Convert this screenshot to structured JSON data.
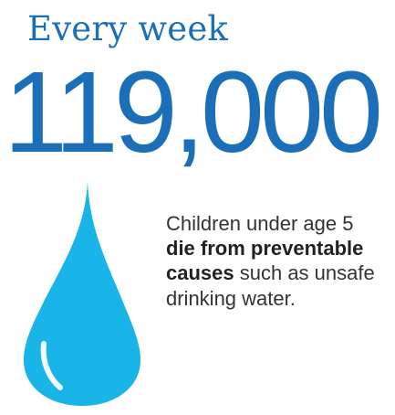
{
  "headline": "Every week",
  "big_number": "119,000",
  "caption": {
    "pre": "Children under age 5 ",
    "emphasis": "die from preventable causes",
    "post": " such as unsafe drinking water."
  },
  "icon": "water-drop-icon",
  "colors": {
    "brand_blue": "#1a6fb8",
    "drop_fill": "#1ab5e8",
    "body_text": "#333333"
  }
}
